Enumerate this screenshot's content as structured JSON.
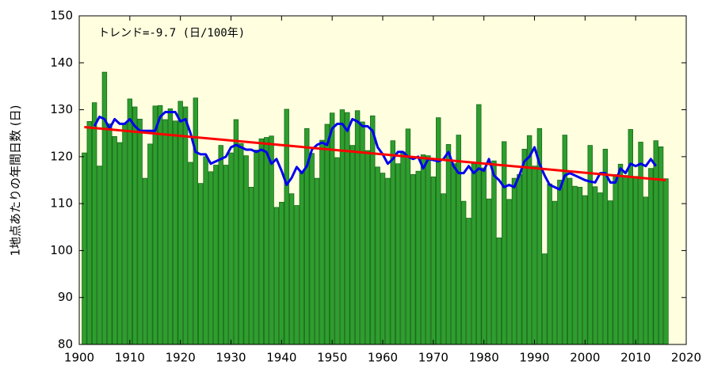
{
  "chart_data": {
    "type": "bar",
    "y_label": "1地点あたりの年間日数 (日)",
    "annotation": "トレンド=-9.7 (日/100年)",
    "xlim": [
      1900,
      2020
    ],
    "xticks": [
      1900,
      1910,
      1920,
      1930,
      1940,
      1950,
      1960,
      1970,
      1980,
      1990,
      2000,
      2010,
      2020
    ],
    "ylim": [
      80,
      150
    ],
    "yticks": [
      80,
      90,
      100,
      110,
      120,
      130,
      140,
      150
    ],
    "background": "#ffffe0",
    "x": [
      1901,
      1902,
      1903,
      1904,
      1905,
      1906,
      1907,
      1908,
      1909,
      1910,
      1911,
      1912,
      1913,
      1914,
      1915,
      1916,
      1917,
      1918,
      1919,
      1920,
      1921,
      1922,
      1923,
      1924,
      1925,
      1926,
      1927,
      1928,
      1929,
      1930,
      1931,
      1932,
      1933,
      1934,
      1935,
      1936,
      1937,
      1938,
      1939,
      1940,
      1941,
      1942,
      1943,
      1944,
      1945,
      1946,
      1947,
      1948,
      1949,
      1950,
      1951,
      1952,
      1953,
      1954,
      1955,
      1956,
      1957,
      1958,
      1959,
      1960,
      1961,
      1962,
      1963,
      1964,
      1965,
      1966,
      1967,
      1968,
      1969,
      1970,
      1971,
      1972,
      1973,
      1974,
      1975,
      1976,
      1977,
      1978,
      1979,
      1980,
      1981,
      1982,
      1983,
      1984,
      1985,
      1986,
      1987,
      1988,
      1989,
      1990,
      1991,
      1992,
      1993,
      1994,
      1995,
      1996,
      1997,
      1998,
      1999,
      2000,
      2001,
      2002,
      2003,
      2004,
      2005,
      2006,
      2007,
      2008,
      2009,
      2010,
      2011,
      2012,
      2013,
      2014,
      2015,
      2016
    ],
    "series": [
      {
        "kind": "bar",
        "color": "#2e9e2e",
        "values": [
          120.8,
          127.5,
          131.5,
          118,
          138,
          127,
          124.3,
          123,
          127,
          132.3,
          130.6,
          128,
          115.4,
          122.7,
          130.8,
          130.9,
          127.9,
          130.2,
          127.6,
          131.8,
          130.6,
          118.8,
          132.5,
          114.3,
          120,
          116.8,
          118.2,
          122.4,
          118.2,
          120.8,
          127.9,
          122.8,
          120.2,
          113.5,
          121.4,
          123.8,
          124.1,
          124.4,
          109.2,
          110.3,
          130.1,
          112.1,
          109.6,
          116.9,
          126,
          120.7,
          115.4,
          123.5,
          126.9,
          129.3,
          119.8,
          130,
          129.4,
          122.4,
          129.8,
          127.4,
          121.3,
          128.7,
          117.8,
          116.5,
          115.4,
          123.4,
          118.5,
          121,
          125.9,
          116.2,
          116.9,
          120.4,
          120.2,
          115.7,
          128.3,
          112.1,
          122.6,
          118.5,
          124.6,
          110.5,
          106.9,
          118.5,
          131.1,
          117.6,
          111,
          119.1,
          102.7,
          123.2,
          110.9,
          115.4,
          116.2,
          121.6,
          124.5,
          118,
          126,
          99.3,
          114.2,
          110.5,
          115,
          124.6,
          115.4,
          113.7,
          113.5,
          111.7,
          122.4,
          113.6,
          112.3,
          121.6,
          110.6,
          116.2,
          118.4,
          116,
          125.8,
          115.8,
          123.1,
          111.4,
          117.5,
          123.4,
          122.1,
          115.3
        ]
      },
      {
        "kind": "line",
        "color": "#0000ee",
        "values": [
          null,
          null,
          126.5,
          128.5,
          128,
          126,
          128,
          127,
          127,
          128,
          126.5,
          125.5,
          125.5,
          125.5,
          125.5,
          128.5,
          129.5,
          129.5,
          129.5,
          127.5,
          128,
          125,
          121,
          120.5,
          120.5,
          118.5,
          119,
          119.5,
          120,
          122,
          122.5,
          122,
          121.5,
          121.5,
          121,
          121.5,
          121,
          118.5,
          119.5,
          117,
          114,
          115.5,
          117.8,
          116.5,
          118,
          121.5,
          122.5,
          123,
          122.5,
          126,
          127,
          127,
          125.5,
          128,
          127.5,
          126.5,
          126.5,
          125.5,
          122,
          120.5,
          118.5,
          119.5,
          121,
          121,
          120,
          119.5,
          120,
          117.5,
          119.5,
          119.3,
          119,
          119.5,
          121,
          118,
          116.5,
          116.5,
          118,
          116.5,
          117.5,
          117,
          119.5,
          116,
          115,
          113.5,
          114,
          113.5,
          116,
          119,
          120,
          122,
          118.5,
          116,
          114,
          113.5,
          113,
          116,
          116.5,
          116,
          115.5,
          115,
          114.7,
          114.5,
          116.5,
          116.5,
          114.5,
          114.5,
          117.5,
          116.5,
          118.5,
          118,
          118.5,
          118,
          119.5,
          118,
          null,
          null
        ]
      },
      {
        "kind": "trend",
        "color": "#ff0000",
        "x": [
          1901,
          2016
        ],
        "values": [
          126.3,
          115.0
        ]
      }
    ]
  }
}
